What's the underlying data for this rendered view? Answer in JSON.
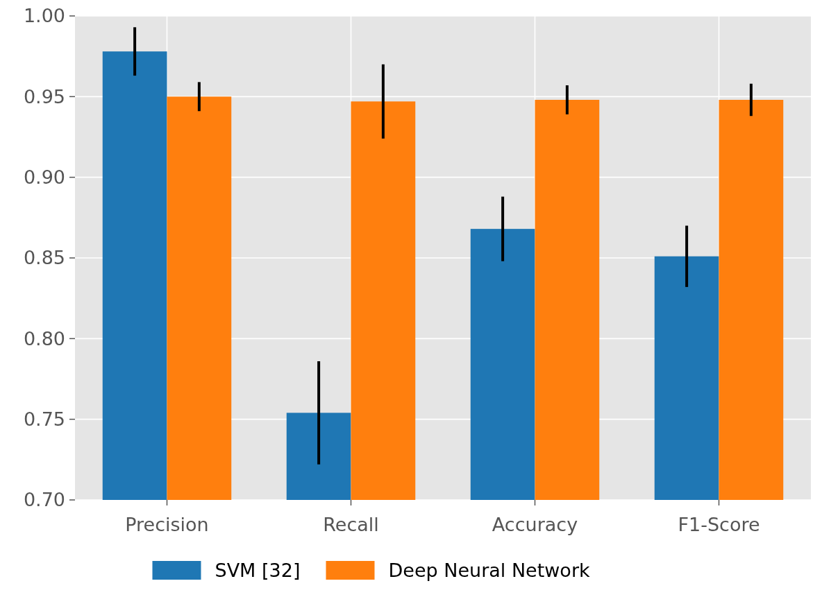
{
  "chart_data": {
    "type": "bar",
    "categories": [
      "Precision",
      "Recall",
      "Accuracy",
      "F1-Score"
    ],
    "series": [
      {
        "name": "SVM [32]",
        "color": "#1f77b4",
        "values": [
          0.978,
          0.754,
          0.868,
          0.851
        ],
        "errors": [
          0.015,
          [
            0.722,
            0.786
          ],
          0.02,
          0.019
        ]
      },
      {
        "name": "Deep Neural Network",
        "color": "#ff7f0e",
        "values": [
          0.95,
          0.947,
          0.948,
          0.948
        ],
        "errors": [
          0.009,
          0.023,
          0.009,
          0.01
        ]
      }
    ],
    "ylim": [
      0.7,
      1.0
    ],
    "yticks": [
      {
        "value": 0.7,
        "label": "0.70"
      },
      {
        "value": 0.75,
        "label": "0.75"
      },
      {
        "value": 0.8,
        "label": "0.80"
      },
      {
        "value": 0.85,
        "label": "0.85"
      },
      {
        "value": 0.9,
        "label": "0.90"
      },
      {
        "value": 0.95,
        "label": "0.95"
      },
      {
        "value": 1.0,
        "label": "1.00"
      }
    ],
    "grid": true,
    "legend": "bottom"
  }
}
